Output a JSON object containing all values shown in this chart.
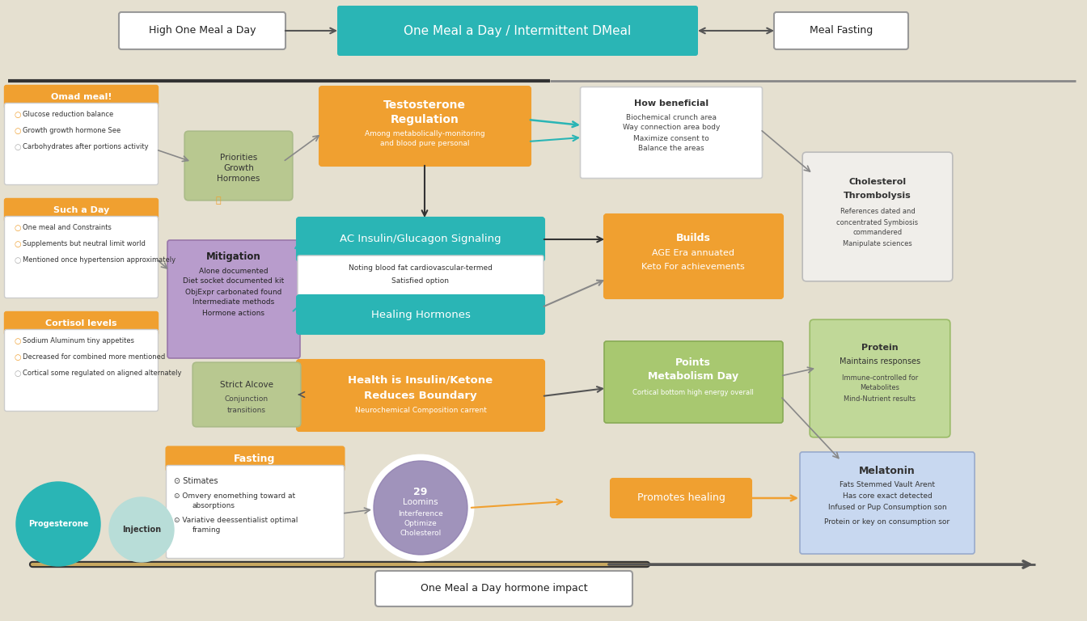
{
  "bg_color": "#e5e0d0",
  "title_bg": "#2ab5b5",
  "title_text": "One Meal a Day / Intermittent DMeal",
  "left_pill": "High One Meal a Day",
  "right_pill": "Meal Fasting",
  "bottom_label": "One Meal a Day hormone impact",
  "orange": "#f0a030",
  "teal": "#2ab5b5",
  "purple": "#9080b0",
  "green_light": "#a8c870",
  "cloud_green": "#b8c890",
  "cloud_white": "#f0eeea",
  "cloud_blue": "#c8d8f0",
  "left_panels": [
    {
      "title": "Omad meal!",
      "items": [
        "Glucose reduction balance",
        "Growth growth hormone See",
        "Carbohydrates after portions activity"
      ]
    },
    {
      "title": "Such a Day",
      "items": [
        "One meal and Constraints",
        "Supplements but neutral limit world",
        "Mentioned once hypertension approximately"
      ]
    },
    {
      "title": "Cortisol levels",
      "items": [
        "Sodium Aluminum tiny appetites",
        "Decreased for combined more mentioned",
        "Cortical some regulated on aligned alternately"
      ]
    }
  ]
}
